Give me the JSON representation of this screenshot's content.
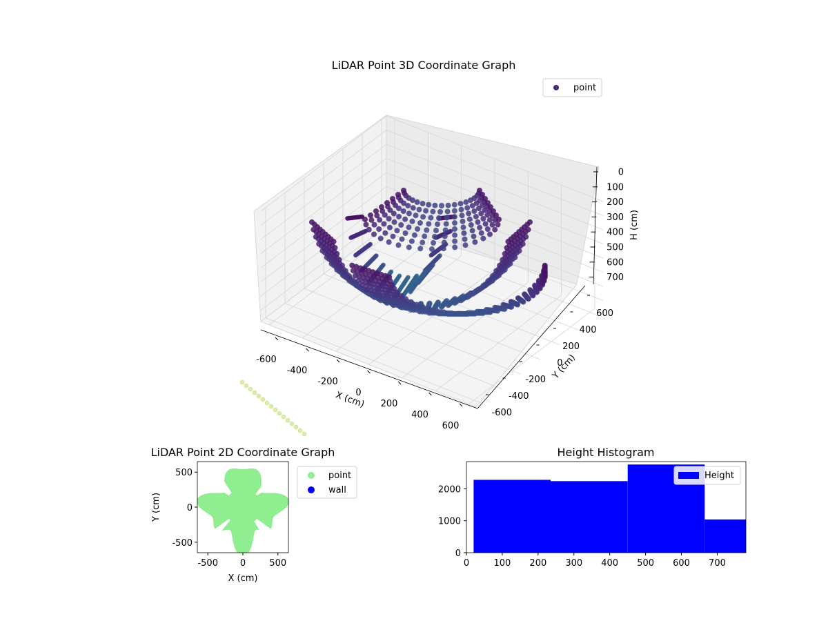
{
  "chart_data": [
    {
      "type": "scatter3d",
      "title": "LiDAR Point 3D Coordinate Graph",
      "xlabel": "X (cm)",
      "ylabel": "Y (cm)",
      "zlabel": "H (cm)",
      "xlim": [
        -650,
        650
      ],
      "ylim": [
        -650,
        650
      ],
      "zlim": [
        780,
        0
      ],
      "z_inverted": true,
      "xticks": [
        -600,
        -400,
        -200,
        0,
        200,
        400,
        600
      ],
      "yticks": [
        -600,
        -400,
        -200,
        0,
        200,
        400,
        600
      ],
      "zticks": [
        0,
        100,
        200,
        300,
        400,
        500,
        600,
        700
      ],
      "legend": {
        "location": "top-right",
        "entries": [
          {
            "label": "point",
            "color": "#482878"
          }
        ]
      },
      "series": [
        {
          "label": "point",
          "colormap": "viridis",
          "marker": "circle",
          "shape": "concentric parabolic arcs (inverted-dome rings)"
        }
      ],
      "grid": true
    },
    {
      "type": "scatter",
      "title": "LiDAR Point 2D Coordinate Graph",
      "xlabel": "X (cm)",
      "ylabel": "Y (cm)",
      "xlim": [
        -650,
        650
      ],
      "ylim": [
        -650,
        650
      ],
      "xticks": [
        -500,
        0,
        500
      ],
      "yticks": [
        -500,
        0,
        500
      ],
      "legend": {
        "location": "outside-right",
        "entries": [
          {
            "label": "point",
            "color": "#90ee90"
          },
          {
            "label": "wall",
            "color": "#0000ff"
          }
        ]
      },
      "series": [
        {
          "label": "point",
          "color": "#90ee90",
          "shape": "filled disc with radial lobes"
        },
        {
          "label": "wall",
          "color": "#0000ff",
          "points": []
        }
      ],
      "grid": false
    },
    {
      "type": "bar",
      "title": "Height Histogram",
      "xlim": [
        0,
        780
      ],
      "ylim": [
        0,
        2850
      ],
      "xticks": [
        0,
        100,
        200,
        300,
        400,
        500,
        600,
        700
      ],
      "yticks": [
        0,
        1000,
        2000
      ],
      "bins": [
        {
          "x0": 20,
          "x1": 235,
          "count": 2280
        },
        {
          "x0": 235,
          "x1": 450,
          "count": 2240
        },
        {
          "x0": 450,
          "x1": 665,
          "count": 2760
        },
        {
          "x0": 665,
          "x1": 780,
          "count": 1040
        }
      ],
      "color": "#0000ff",
      "legend": {
        "location": "top-right",
        "entries": [
          {
            "label": "Height",
            "color": "#0000ff"
          }
        ]
      },
      "grid": false
    }
  ]
}
